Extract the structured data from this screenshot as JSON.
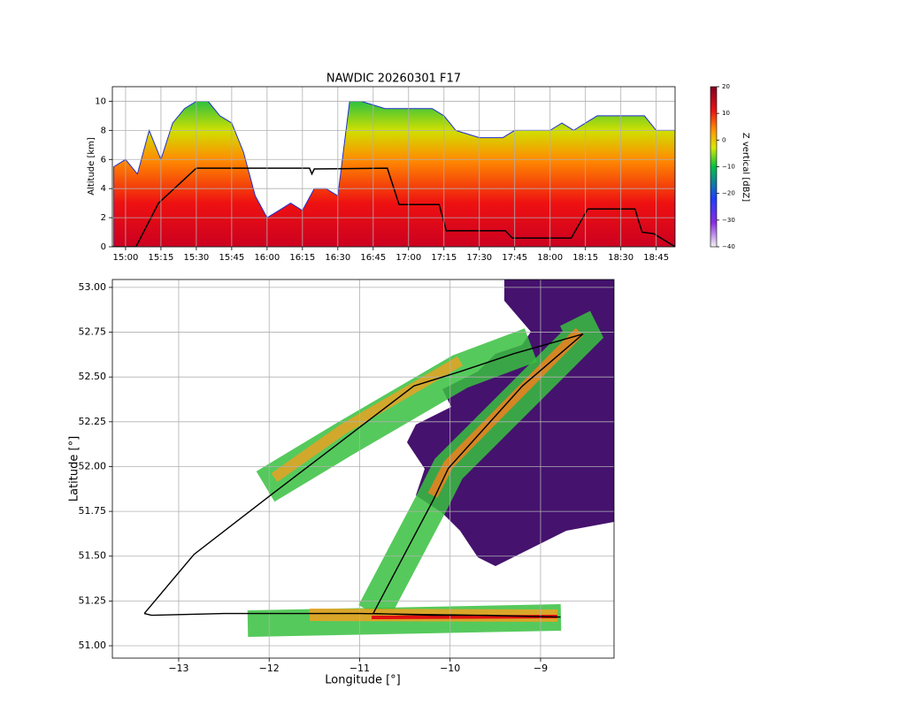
{
  "chart_data": [
    {
      "type": "curtain",
      "title": "NAWDIC 20260301 F17",
      "ylabel": "Altitude [km]",
      "xlim": [
        894.4,
        1133
      ],
      "ylim": [
        0,
        11
      ],
      "xticks": [
        {
          "value": 900,
          "label": "15:00"
        },
        {
          "value": 915,
          "label": "15:15"
        },
        {
          "value": 930,
          "label": "15:30"
        },
        {
          "value": 945,
          "label": "15:45"
        },
        {
          "value": 960,
          "label": "16:00"
        },
        {
          "value": 975,
          "label": "16:15"
        },
        {
          "value": 990,
          "label": "16:30"
        },
        {
          "value": 1005,
          "label": "16:45"
        },
        {
          "value": 1020,
          "label": "17:00"
        },
        {
          "value": 1035,
          "label": "17:15"
        },
        {
          "value": 1050,
          "label": "17:30"
        },
        {
          "value": 1065,
          "label": "17:45"
        },
        {
          "value": 1080,
          "label": "18:00"
        },
        {
          "value": 1095,
          "label": "18:15"
        },
        {
          "value": 1110,
          "label": "18:30"
        },
        {
          "value": 1125,
          "label": "18:45"
        }
      ],
      "yticks": [
        0,
        2,
        4,
        6,
        8,
        10
      ],
      "grid": true,
      "echo_top": {
        "x": [
          895,
          900,
          905,
          910,
          915,
          920,
          925,
          930,
          935,
          940,
          945,
          950,
          955,
          960,
          965,
          970,
          975,
          980,
          985,
          990,
          995,
          1000,
          1010,
          1020,
          1030,
          1035,
          1040,
          1050,
          1060,
          1065,
          1070,
          1080,
          1085,
          1090,
          1095,
          1100,
          1110,
          1120,
          1125,
          1133
        ],
        "values": [
          5.5,
          6,
          5,
          8,
          6,
          8.5,
          9.5,
          10,
          10,
          9,
          8.5,
          6.5,
          3.5,
          2,
          2.5,
          3,
          2.5,
          4,
          4,
          3.5,
          10,
          10,
          9.5,
          9.5,
          9.5,
          9,
          8,
          7.5,
          7.5,
          8,
          8,
          8,
          8.5,
          8,
          8.5,
          9,
          9,
          9,
          8,
          8
        ]
      },
      "track": {
        "color": "#000000",
        "x": [
          894.4,
          904.4,
          914,
          930,
          978,
          979,
          980,
          1011,
          1016,
          1033,
          1036,
          1061,
          1064,
          1089,
          1096,
          1116,
          1119,
          1124,
          1133
        ],
        "values": [
          0,
          0,
          3,
          5.4,
          5.4,
          5.0,
          5.35,
          5.4,
          2.9,
          2.9,
          1.1,
          1.1,
          0.6,
          0.6,
          2.6,
          2.6,
          1.0,
          0.9,
          0
        ]
      },
      "colorbar": {
        "label": "Z vertical [dBZ]",
        "lim": [
          -40,
          20
        ],
        "ticks": [
          20,
          10,
          0,
          {
            "value": -10,
            "label": "−10"
          },
          {
            "value": -20,
            "label": "−20"
          },
          {
            "value": -30,
            "label": "−30"
          },
          {
            "value": -40,
            "label": "−40"
          }
        ]
      }
    },
    {
      "type": "map",
      "xlabel": "Longitude [°]",
      "ylabel": "Latitude [°]",
      "xlim": [
        -13.733,
        -8.188
      ],
      "ylim": [
        50.931,
        53.044
      ],
      "grid": true,
      "xticks": [
        {
          "value": -13,
          "label": "−13"
        },
        {
          "value": -12,
          "label": "−12"
        },
        {
          "value": -11,
          "label": "−11"
        },
        {
          "value": -10,
          "label": "−10"
        },
        {
          "value": -9,
          "label": "−9"
        }
      ],
      "yticks": [
        {
          "value": 51,
          "label": "51.00"
        },
        {
          "value": 51.25,
          "label": "51.25"
        },
        {
          "value": 51.5,
          "label": "51.50"
        },
        {
          "value": 51.75,
          "label": "51.75"
        },
        {
          "value": 52,
          "label": "52.00"
        },
        {
          "value": 52.25,
          "label": "52.25"
        },
        {
          "value": 52.5,
          "label": "52.50"
        },
        {
          "value": 52.75,
          "label": "52.75"
        },
        {
          "value": 53,
          "label": "53.00"
        }
      ],
      "track": {
        "color": "#000000",
        "x": [
          -13.38,
          -12.83,
          -11.96,
          -11.18,
          -10.4,
          -9.89,
          -9.3,
          -8.53,
          -9.2,
          -10.02,
          -10.19,
          -10.85,
          -10.2,
          -9.6,
          -8.78,
          -9.7,
          -11.0,
          -12.5,
          -13.3,
          -13.38
        ],
        "y": [
          51.18,
          51.51,
          51.85,
          52.15,
          52.45,
          52.53,
          52.63,
          52.74,
          52.45,
          51.99,
          51.81,
          51.18,
          51.17,
          51.17,
          51.16,
          51.17,
          51.18,
          51.18,
          51.17,
          51.18
        ]
      }
    }
  ]
}
